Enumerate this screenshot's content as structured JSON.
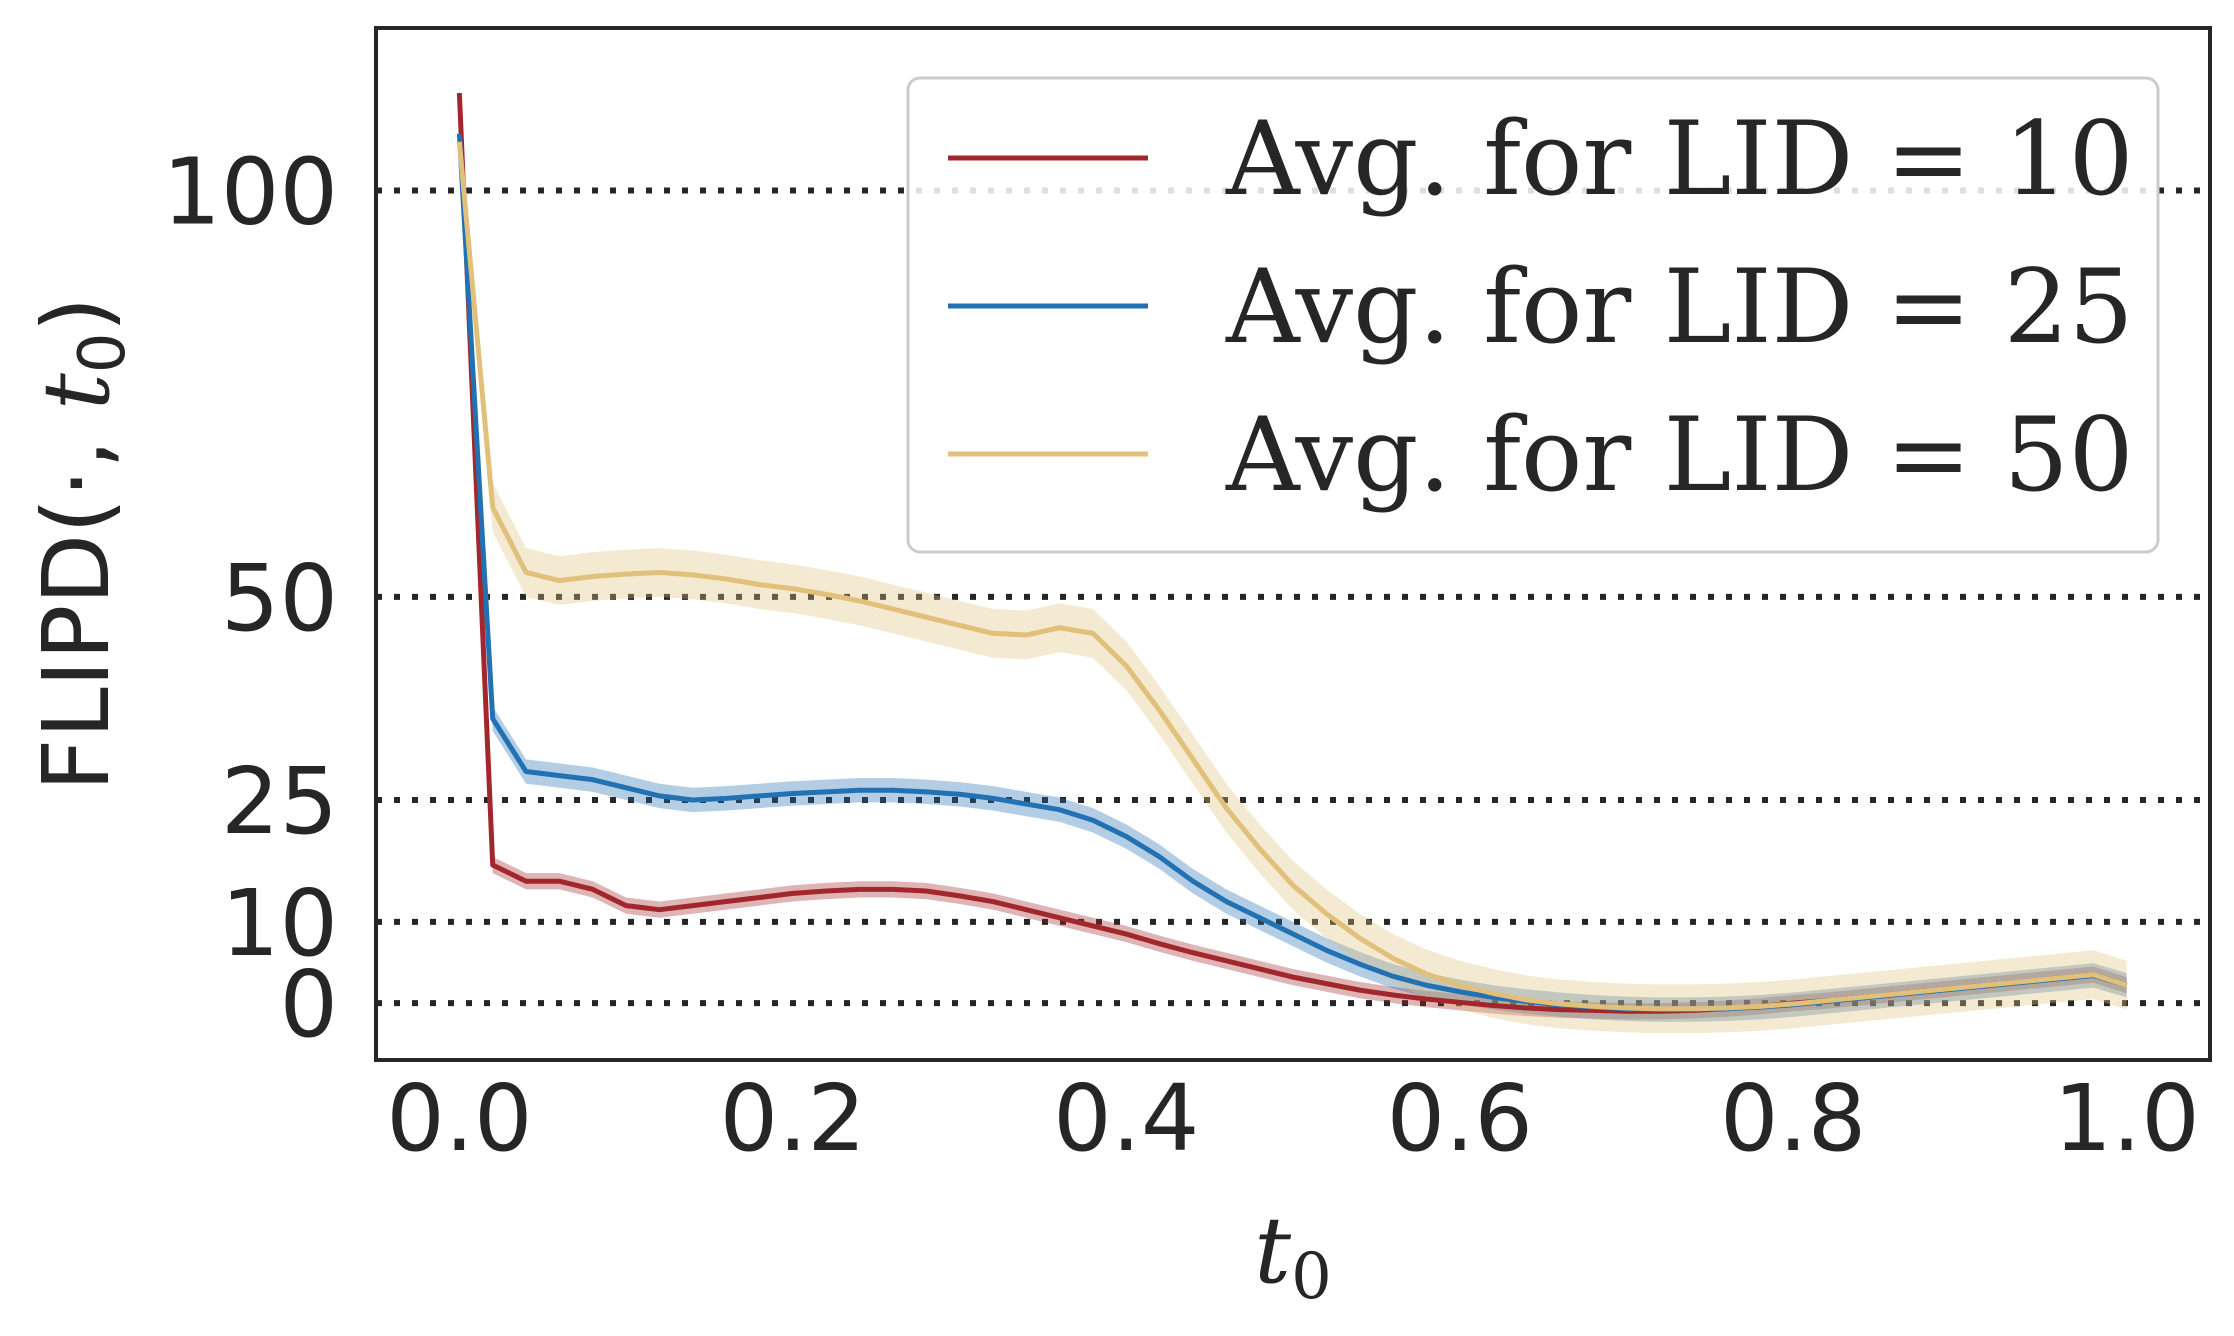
{
  "chart_data": {
    "type": "line",
    "title": "",
    "xlabel": "t0",
    "xlabel_display": {
      "base": "t",
      "sub": "0"
    },
    "ylabel": "FLIPD(·, t0)",
    "ylabel_display": {
      "prefix": "FLIPD(·, ",
      "var": "t",
      "sub": "0",
      "suffix": ")"
    },
    "xlim": [
      -0.05,
      1.05
    ],
    "ylim": [
      -7,
      120
    ],
    "xticks": [
      0.0,
      0.2,
      0.4,
      0.6,
      0.8,
      1.0
    ],
    "xtick_labels": [
      "0.0",
      "0.2",
      "0.4",
      "0.6",
      "0.8",
      "1.0"
    ],
    "yticks": [
      0,
      10,
      25,
      50,
      100
    ],
    "ytick_labels": [
      "0",
      "10",
      "25",
      "50",
      "100"
    ],
    "reference_lines": [
      0,
      10,
      25,
      50,
      100
    ],
    "reference_line_style": "dotted",
    "grid": false,
    "legend_position": "top-right",
    "series": [
      {
        "name": "Avg. for LID = 10",
        "color": "#a1272c",
        "x": [
          0.0,
          0.02,
          0.04,
          0.06,
          0.08,
          0.1,
          0.12,
          0.14,
          0.16,
          0.18,
          0.2,
          0.22,
          0.24,
          0.26,
          0.28,
          0.3,
          0.32,
          0.34,
          0.36,
          0.38,
          0.4,
          0.42,
          0.44,
          0.46,
          0.48,
          0.5,
          0.52,
          0.54,
          0.56,
          0.58,
          0.6,
          0.62,
          0.64,
          0.66,
          0.68,
          0.7,
          0.72,
          0.74,
          0.76,
          0.78,
          0.8,
          0.82,
          0.84,
          0.86,
          0.88,
          0.9,
          0.92,
          0.94,
          0.96,
          0.98,
          1.0
        ],
        "y": [
          112,
          17,
          15,
          15,
          14,
          12,
          11.5,
          12,
          12.5,
          13,
          13.5,
          13.8,
          14,
          14,
          13.8,
          13.2,
          12.5,
          11.5,
          10.5,
          9.5,
          8.5,
          7.3,
          6.2,
          5.2,
          4.2,
          3.2,
          2.4,
          1.6,
          1.0,
          0.5,
          0.1,
          -0.3,
          -0.6,
          -0.8,
          -0.9,
          -1.0,
          -1.0,
          -0.9,
          -0.7,
          -0.4,
          0.0,
          0.3,
          0.7,
          1.1,
          1.5,
          1.9,
          2.3,
          2.7,
          3.1,
          3.5,
          2.2
        ],
        "band": 1.0
      },
      {
        "name": "Avg. for LID = 25",
        "color": "#2271b3",
        "x": [
          0.0,
          0.02,
          0.04,
          0.06,
          0.08,
          0.1,
          0.12,
          0.14,
          0.16,
          0.18,
          0.2,
          0.22,
          0.24,
          0.26,
          0.28,
          0.3,
          0.32,
          0.34,
          0.36,
          0.38,
          0.4,
          0.42,
          0.44,
          0.46,
          0.48,
          0.5,
          0.52,
          0.54,
          0.56,
          0.58,
          0.6,
          0.62,
          0.64,
          0.66,
          0.68,
          0.7,
          0.72,
          0.74,
          0.76,
          0.78,
          0.8,
          0.82,
          0.84,
          0.86,
          0.88,
          0.9,
          0.92,
          0.94,
          0.96,
          0.98,
          1.0
        ],
        "y": [
          107,
          35,
          28.5,
          28,
          27.5,
          26.5,
          25.5,
          25,
          25.2,
          25.5,
          25.8,
          26,
          26.2,
          26.2,
          26,
          25.7,
          25.2,
          24.5,
          23.8,
          22.5,
          20.5,
          18,
          15,
          12.5,
          10.5,
          8.5,
          6.5,
          4.8,
          3.3,
          2.2,
          1.4,
          0.7,
          0.2,
          -0.2,
          -0.5,
          -0.7,
          -0.8,
          -0.8,
          -0.7,
          -0.5,
          -0.2,
          0.2,
          0.6,
          1.0,
          1.4,
          1.8,
          2.2,
          2.6,
          3.0,
          3.4,
          2.2
        ],
        "band": 1.5
      },
      {
        "name": "Avg. for LID = 50",
        "color": "#e0c07a",
        "x": [
          0.0,
          0.02,
          0.04,
          0.06,
          0.08,
          0.1,
          0.12,
          0.14,
          0.16,
          0.18,
          0.2,
          0.22,
          0.24,
          0.26,
          0.28,
          0.3,
          0.32,
          0.34,
          0.36,
          0.38,
          0.4,
          0.42,
          0.44,
          0.46,
          0.48,
          0.5,
          0.52,
          0.54,
          0.56,
          0.58,
          0.6,
          0.62,
          0.64,
          0.66,
          0.68,
          0.7,
          0.72,
          0.74,
          0.76,
          0.78,
          0.8,
          0.82,
          0.84,
          0.86,
          0.88,
          0.9,
          0.92,
          0.94,
          0.96,
          0.98,
          1.0
        ],
        "y": [
          106,
          61,
          53,
          52,
          52.5,
          52.8,
          53,
          52.7,
          52.2,
          51.5,
          51,
          50.3,
          49.5,
          48.5,
          47.5,
          46.5,
          45.5,
          45.3,
          46.2,
          45.5,
          41.5,
          36,
          30,
          24,
          19,
          14.5,
          11,
          8,
          5.5,
          3.6,
          2.2,
          1.2,
          0.4,
          -0.1,
          -0.4,
          -0.6,
          -0.7,
          -0.7,
          -0.6,
          -0.4,
          -0.1,
          0.3,
          0.7,
          1.1,
          1.5,
          1.9,
          2.3,
          2.7,
          3.1,
          3.5,
          2.2
        ],
        "band": 3.0
      }
    ]
  }
}
